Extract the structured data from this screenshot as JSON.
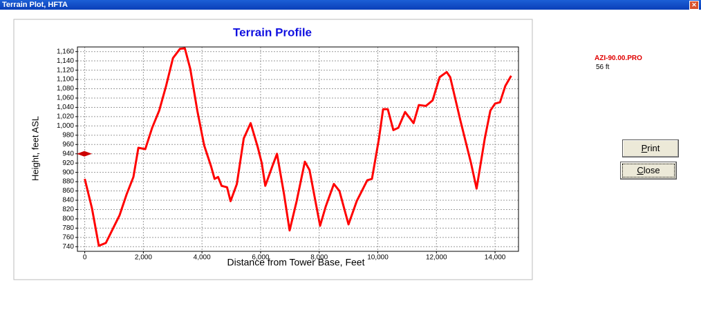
{
  "window": {
    "title": "Terrain Plot, HFTA"
  },
  "chart_data": {
    "type": "line",
    "title": "Terrain Profile",
    "x_label": "Distance from Tower Base, Feet",
    "y_label": "Height, feet ASL",
    "x": [
      0,
      245,
      480,
      720,
      955,
      1190,
      1430,
      1660,
      1830,
      2065,
      2300,
      2540,
      2775,
      3010,
      3250,
      3415,
      3600,
      3840,
      4075,
      4310,
      4430,
      4550,
      4670,
      4855,
      4975,
      5190,
      5425,
      5660,
      5900,
      6040,
      6160,
      6400,
      6560,
      6800,
      6990,
      7230,
      7510,
      7670,
      8030,
      8220,
      8500,
      8690,
      9000,
      9280,
      9640,
      9800,
      10040,
      10180,
      10340,
      10530,
      10700,
      10930,
      11220,
      11400,
      11640,
      11870,
      12110,
      12350,
      12470,
      12820,
      13180,
      13370,
      13650,
      13840,
      14000,
      14170,
      14350,
      14550
    ],
    "values": [
      886,
      823,
      742,
      748,
      778,
      808,
      853,
      890,
      953,
      950,
      996,
      1033,
      1086,
      1146,
      1166,
      1167,
      1123,
      1033,
      958,
      913,
      886,
      890,
      871,
      868,
      838,
      875,
      973,
      1006,
      955,
      920,
      871,
      913,
      940,
      853,
      775,
      838,
      923,
      905,
      785,
      826,
      875,
      860,
      788,
      838,
      883,
      886,
      973,
      1036,
      1036,
      991,
      996,
      1030,
      1006,
      1045,
      1043,
      1055,
      1105,
      1116,
      1105,
      1011,
      920,
      865,
      973,
      1033,
      1048,
      1051,
      1086,
      1108
    ],
    "color": "#ff0000",
    "marker": 940,
    "marker_color": "#cc0000",
    "xlim": [
      -250,
      14800
    ],
    "ylim": [
      730,
      1170
    ],
    "xticks": [
      0,
      {
        "value": 2000,
        "label": "2,000"
      },
      {
        "value": 4000,
        "label": "4,000"
      },
      {
        "value": 6000,
        "label": "6,000"
      },
      {
        "value": 8000,
        "label": "8,000"
      },
      {
        "value": 10000,
        "label": "10,000"
      },
      {
        "value": 12000,
        "label": "12,000"
      },
      {
        "value": 14000,
        "label": "14,000"
      }
    ],
    "yticks": [
      740,
      760,
      780,
      800,
      820,
      840,
      860,
      880,
      900,
      920,
      940,
      960,
      980,
      {
        "value": 1000,
        "label": "1,000"
      },
      {
        "value": 1020,
        "label": "1,020"
      },
      {
        "value": 1040,
        "label": "1,040"
      },
      {
        "value": 1060,
        "label": "1,060"
      },
      {
        "value": 1080,
        "label": "1,080"
      },
      {
        "value": 1100,
        "label": "1,100"
      },
      {
        "value": 1120,
        "label": "1,120"
      },
      {
        "value": 1140,
        "label": "1,140"
      },
      {
        "value": 1160,
        "label": "1,160"
      }
    ],
    "grid": true
  },
  "side": {
    "file": "AZI-90.00.PRO",
    "height": "56 ft"
  },
  "buttons": [
    "Print",
    "Close"
  ]
}
